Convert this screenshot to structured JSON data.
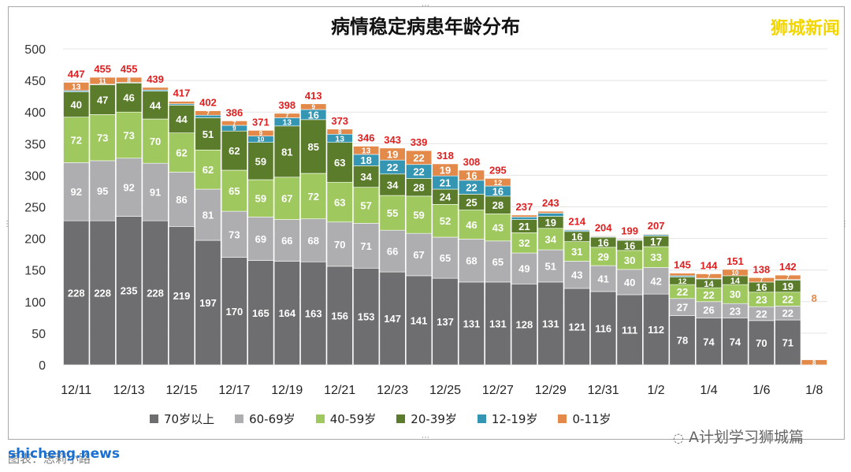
{
  "chart_data": {
    "type": "bar",
    "stacked": true,
    "title": "病情稳定病患年龄分布",
    "categories": [
      "12/11",
      "12/12",
      "12/13",
      "12/14",
      "12/15",
      "12/16",
      "12/17",
      "12/18",
      "12/19",
      "12/20",
      "12/21",
      "12/22",
      "12/23",
      "12/24",
      "12/25",
      "12/26",
      "12/27",
      "12/28",
      "12/29",
      "12/30",
      "12/31",
      "1/1",
      "1/2",
      "1/3",
      "1/4",
      "1/5",
      "1/6",
      "1/7",
      "1/8"
    ],
    "x_tick_labels": [
      "12/11",
      "12/13",
      "12/15",
      "12/17",
      "12/19",
      "12/21",
      "12/23",
      "12/25",
      "12/27",
      "12/29",
      "12/31",
      "1/2",
      "1/4",
      "1/6",
      "1/8"
    ],
    "y_tick_labels": [
      "0",
      "50",
      "100",
      "150",
      "200",
      "250",
      "300",
      "350",
      "400",
      "450",
      "500"
    ],
    "ylim": [
      0,
      500
    ],
    "grid": true,
    "legend_position": "bottom",
    "series": [
      {
        "name": "70岁以上",
        "color": "#6e6d6f",
        "values": [
          228,
          228,
          235,
          228,
          219,
          197,
          170,
          165,
          164,
          163,
          156,
          153,
          147,
          141,
          137,
          131,
          131,
          128,
          131,
          121,
          116,
          111,
          112,
          78,
          74,
          74,
          70,
          71,
          null
        ]
      },
      {
        "name": "60-69岁",
        "color": "#aeaeb0",
        "values": [
          92,
          95,
          92,
          91,
          86,
          81,
          73,
          69,
          66,
          68,
          70,
          71,
          66,
          67,
          65,
          68,
          65,
          49,
          51,
          43,
          41,
          40,
          42,
          27,
          26,
          23,
          22,
          22,
          null
        ]
      },
      {
        "name": "40-59岁",
        "color": "#9fc95f",
        "values": [
          72,
          73,
          73,
          70,
          62,
          62,
          65,
          59,
          67,
          72,
          63,
          57,
          55,
          59,
          52,
          46,
          43,
          32,
          34,
          31,
          29,
          30,
          33,
          22,
          22,
          30,
          23,
          22,
          null
        ]
      },
      {
        "name": "20-39岁",
        "color": "#5b7d2b",
        "values": [
          40,
          47,
          46,
          44,
          44,
          51,
          62,
          59,
          81,
          85,
          63,
          34,
          34,
          28,
          24,
          25,
          28,
          21,
          19,
          16,
          16,
          16,
          17,
          12,
          14,
          14,
          16,
          19,
          null
        ]
      },
      {
        "name": "12-19岁",
        "color": "#3496b2",
        "values": [
          2,
          1,
          1,
          2,
          2,
          4,
          9,
          10,
          13,
          16,
          13,
          18,
          22,
          22,
          21,
          22,
          16,
          4,
          5,
          2,
          1,
          1,
          2,
          2,
          1,
          0,
          0,
          1,
          null
        ]
      },
      {
        "name": "0-11岁",
        "color": "#e3894a",
        "values": [
          13,
          11,
          8,
          4,
          4,
          7,
          7,
          9,
          7,
          9,
          8,
          13,
          19,
          22,
          19,
          16,
          12,
          3,
          3,
          1,
          1,
          1,
          1,
          4,
          7,
          10,
          7,
          7,
          8
        ]
      }
    ],
    "totals": [
      447,
      455,
      455,
      439,
      417,
      402,
      386,
      371,
      398,
      413,
      373,
      346,
      343,
      339,
      318,
      308,
      295,
      237,
      243,
      214,
      204,
      199,
      207,
      145,
      144,
      151,
      138,
      142,
      8
    ],
    "total_label_color": "#e02020"
  },
  "header": {
    "watermark": "狮城新闻"
  },
  "footer": {
    "site": "shicheng.news",
    "caption": "图表：思莉小路",
    "account": "A计划学习狮城篇"
  }
}
